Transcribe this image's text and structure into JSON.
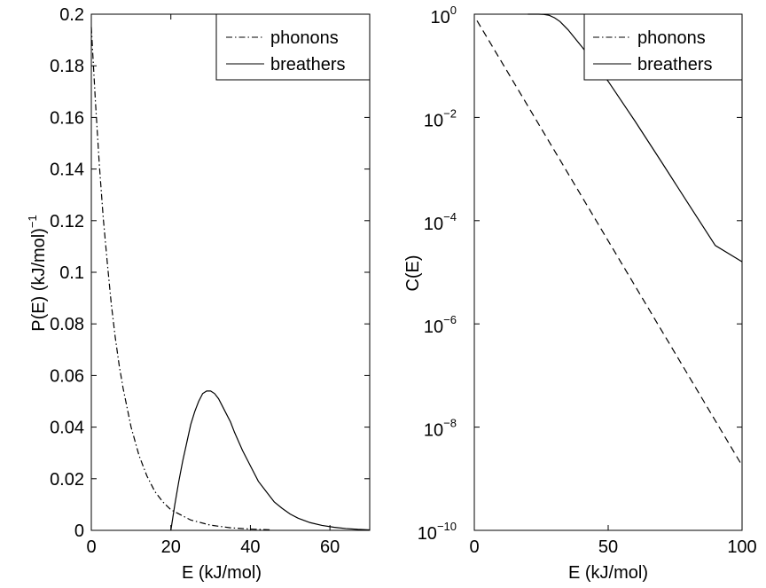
{
  "chart_data": [
    {
      "type": "line",
      "title": "",
      "xlabel": "E  (kJ/mol)",
      "ylabel": "P(E)  (kJ/mol)",
      "ylabel_exponent": "−1",
      "xlim": [
        0,
        70
      ],
      "ylim": [
        0,
        0.2
      ],
      "yscale": "linear",
      "grid": false,
      "legend_position": "top-right",
      "xticks": [
        0,
        20,
        40,
        60
      ],
      "xtick_labels": [
        "0",
        "20",
        "40",
        "60"
      ],
      "yticks": [
        0,
        0.02,
        0.04,
        0.06,
        0.08,
        0.1,
        0.12,
        0.14,
        0.16,
        0.18,
        0.2
      ],
      "ytick_labels": [
        "0",
        "0.02",
        "0.04",
        "0.06",
        "0.08",
        "0.1",
        "0.12",
        "0.14",
        "0.16",
        "0.18",
        "0.2"
      ],
      "series": [
        {
          "name": "phonons",
          "style": "dashdot",
          "x": [
            0,
            1,
            2,
            3,
            4,
            5,
            6,
            7,
            8,
            10,
            12,
            14,
            16,
            18,
            20,
            25,
            30,
            35,
            40,
            45
          ],
          "y": [
            0.195,
            0.167,
            0.142,
            0.121,
            0.104,
            0.088,
            0.075,
            0.064,
            0.055,
            0.04,
            0.029,
            0.021,
            0.015,
            0.011,
            0.008,
            0.004,
            0.002,
            0.001,
            0.0005,
            0.0002
          ]
        },
        {
          "name": "breathers",
          "style": "solid",
          "x": [
            20,
            21,
            22,
            23,
            24,
            25,
            26,
            27,
            28,
            29,
            30,
            31,
            32,
            33,
            34,
            35,
            36,
            38,
            40,
            42,
            44,
            46,
            48,
            50,
            52,
            55,
            58,
            61,
            64,
            67,
            70
          ],
          "y": [
            0,
            0.01,
            0.019,
            0.027,
            0.034,
            0.041,
            0.046,
            0.05,
            0.053,
            0.054,
            0.054,
            0.053,
            0.051,
            0.048,
            0.045,
            0.042,
            0.038,
            0.031,
            0.025,
            0.019,
            0.015,
            0.011,
            0.0085,
            0.0063,
            0.0047,
            0.003,
            0.0019,
            0.0012,
            0.0007,
            0.0004,
            0.0002
          ]
        }
      ]
    },
    {
      "type": "line",
      "title": "",
      "xlabel": "E  (kJ/mol)",
      "ylabel": "C(E)",
      "xlim": [
        0,
        100
      ],
      "ylim": [
        1e-10,
        1
      ],
      "yscale": "log",
      "grid": false,
      "legend_position": "top-right",
      "xticks": [
        0,
        50,
        100
      ],
      "xtick_labels": [
        "0",
        "50",
        "100"
      ],
      "yticks": [
        1e-10,
        1e-08,
        1e-06,
        0.0001,
        0.01,
        1
      ],
      "ytick_base": "10",
      "ytick_exponents": [
        "−10",
        "−8",
        "−6",
        "−4",
        "−2",
        "0"
      ],
      "series": [
        {
          "name": "phonons",
          "style": "dashed",
          "x": [
            1,
            100
          ],
          "y": [
            0.75,
            1.8e-09
          ]
        },
        {
          "name": "breathers",
          "style": "solid",
          "x": [
            20,
            22,
            24,
            26,
            28,
            30,
            32,
            35,
            40,
            45,
            50,
            60,
            70,
            80,
            90,
            100
          ],
          "y": [
            1,
            1,
            1,
            0.99,
            0.95,
            0.85,
            0.72,
            0.5,
            0.24,
            0.11,
            0.05,
            0.0085,
            0.00135,
            0.00021,
            3.3e-05,
            1.6e-05
          ]
        }
      ]
    }
  ]
}
